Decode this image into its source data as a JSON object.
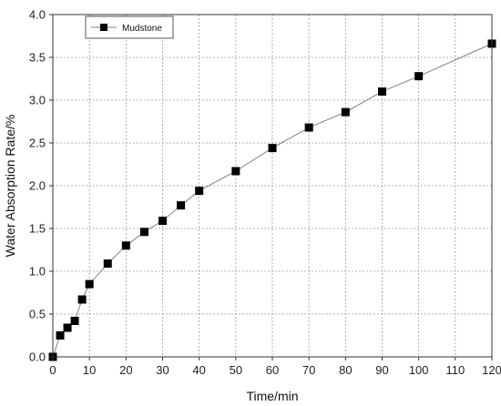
{
  "chart_data": {
    "type": "line",
    "title": "",
    "xlabel": "Time/min",
    "ylabel": "Water Absorption Rate/%",
    "xlim": [
      0,
      120
    ],
    "ylim": [
      0,
      4.0
    ],
    "xticks": [
      "0",
      "10",
      "20",
      "30",
      "40",
      "50",
      "60",
      "70",
      "80",
      "90",
      "100",
      "110",
      "120"
    ],
    "yticks": [
      "0.0",
      "0.5",
      "1.0",
      "1.5",
      "2.0",
      "2.5",
      "3.0",
      "3.5",
      "4.0"
    ],
    "grid": true,
    "legend_position": "top-left",
    "series": [
      {
        "name": "Mudstone",
        "color": "#000000",
        "line_color": "#808080",
        "marker": "square",
        "x": [
          0,
          2,
          4,
          6,
          8,
          10,
          15,
          20,
          25,
          30,
          35,
          40,
          50,
          60,
          70,
          80,
          90,
          100,
          120
        ],
        "y": [
          0.0,
          0.25,
          0.34,
          0.42,
          0.67,
          0.85,
          1.09,
          1.3,
          1.46,
          1.59,
          1.77,
          1.94,
          2.17,
          2.44,
          2.68,
          2.86,
          3.1,
          3.28,
          3.66
        ]
      }
    ]
  }
}
